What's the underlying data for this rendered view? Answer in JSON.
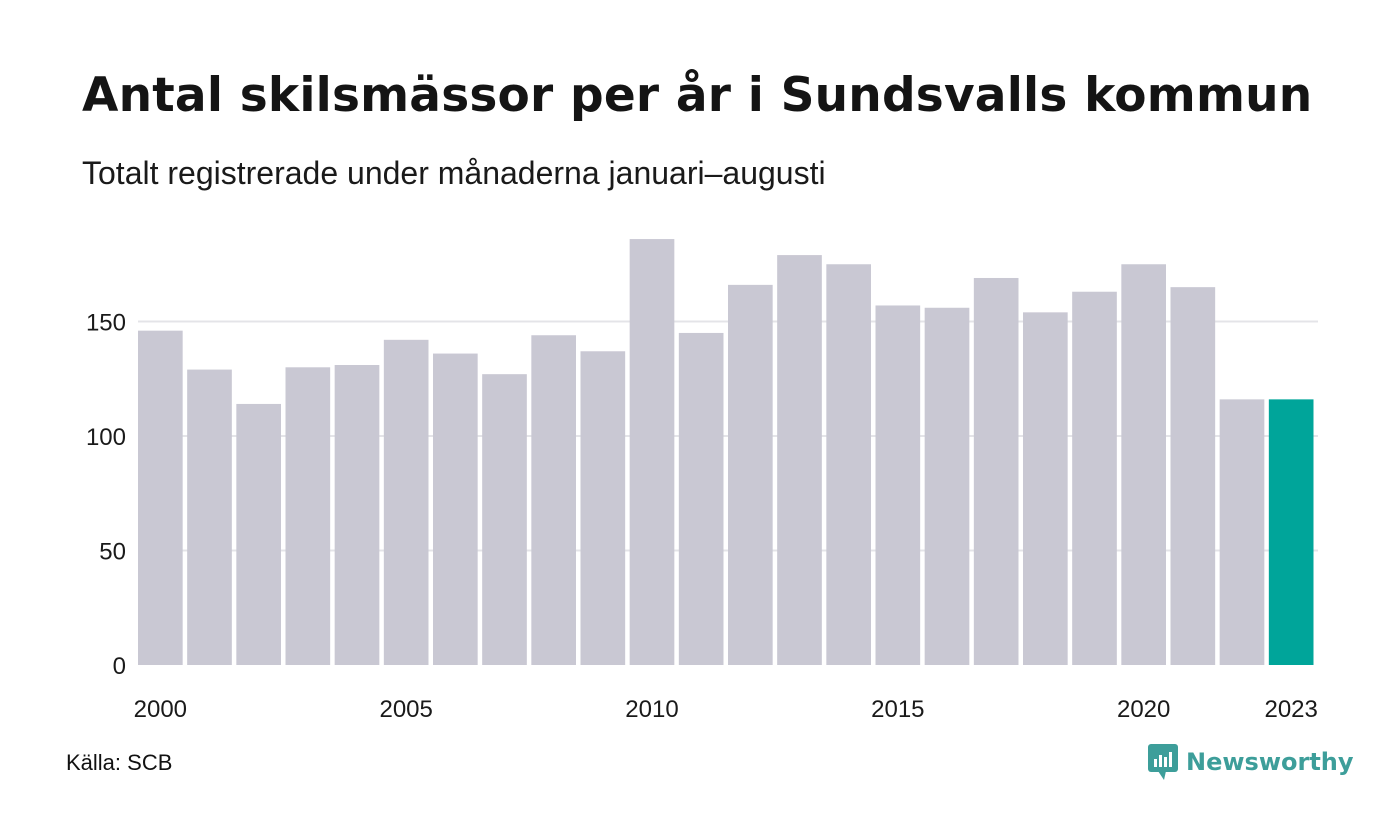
{
  "header": {
    "title": "Antal skilsmässor per år i Sundsvalls kommun",
    "subtitle": "Totalt registrerade under månaderna januari–augusti"
  },
  "footer": {
    "source": "Källa: SCB",
    "brand": "Newsworthy",
    "brand_icon": "newsworthy-logo-icon"
  },
  "colors": {
    "bar": "#c9c8d3",
    "highlight": "#00a59a",
    "grid": "#e4e4e8",
    "brand": "#3d9e9a"
  },
  "chart_data": {
    "type": "bar",
    "title": "Antal skilsmässor per år i Sundsvalls kommun",
    "subtitle": "Totalt registrerade under månaderna januari–augusti",
    "xlabel": "",
    "ylabel": "",
    "categories": [
      "2000",
      "2001",
      "2002",
      "2003",
      "2004",
      "2005",
      "2006",
      "2007",
      "2008",
      "2009",
      "2010",
      "2011",
      "2012",
      "2013",
      "2014",
      "2015",
      "2016",
      "2017",
      "2018",
      "2019",
      "2020",
      "2021",
      "2022",
      "2023"
    ],
    "values": [
      146,
      129,
      114,
      130,
      131,
      142,
      136,
      127,
      144,
      137,
      186,
      145,
      166,
      179,
      175,
      157,
      156,
      169,
      154,
      163,
      175,
      165,
      116,
      116
    ],
    "highlight_category": "2023",
    "x_tick_labels": [
      "2000",
      "2005",
      "2010",
      "2015",
      "2020",
      "2023"
    ],
    "y_ticks": [
      0,
      50,
      100,
      150
    ],
    "ylim": [
      0,
      190
    ],
    "grid": true,
    "legend": "none"
  }
}
